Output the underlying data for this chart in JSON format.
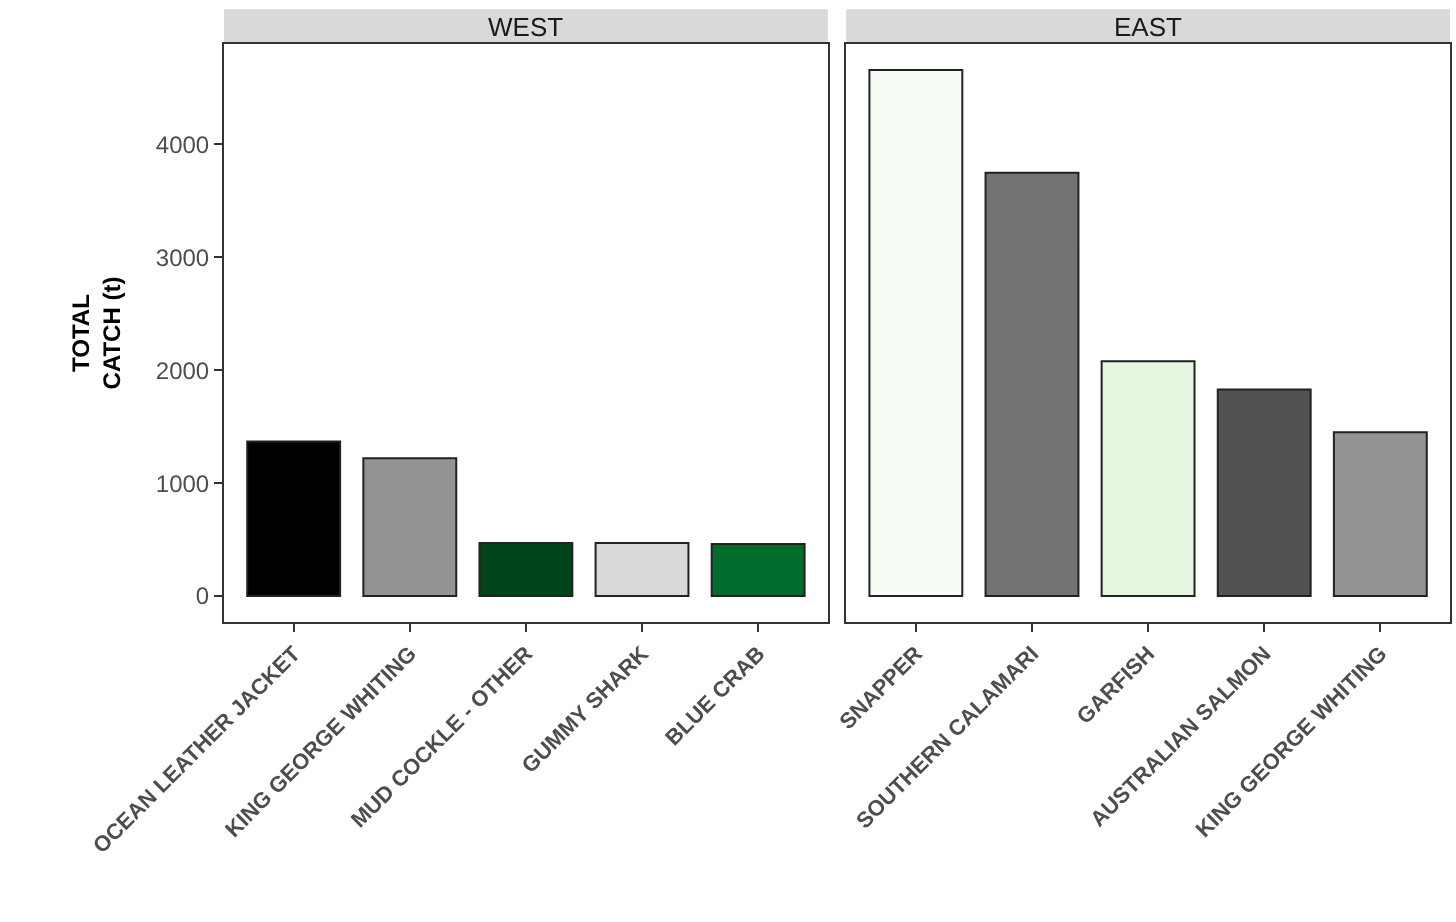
{
  "chart_data": [
    {
      "type": "bar",
      "title": "WEST",
      "ylabel": "TOTAL\nCATCH (t)",
      "categories": [
        "OCEAN LEATHER JACKET",
        "KING GEORGE WHITING",
        "MUD COCKLE - OTHER",
        "GUMMY SHARK",
        "BLUE CRAB"
      ],
      "values": [
        1370,
        1220,
        470,
        470,
        460
      ],
      "colors": [
        "#000000",
        "#939393",
        "#00441b",
        "#d9d9d9",
        "#006d2c"
      ],
      "ylim": [
        -230,
        4890
      ],
      "yticks": [
        0,
        1000,
        2000,
        3000,
        4000
      ]
    },
    {
      "type": "bar",
      "title": "EAST",
      "categories": [
        "SNAPPER",
        "SOUTHERN CALAMARI",
        "GARFISH",
        "AUSTRALIAN SALMON",
        "KING GEORGE WHITING"
      ],
      "values": [
        4660,
        3750,
        2080,
        1830,
        1450
      ],
      "colors": [
        "#f7fcf5",
        "#737373",
        "#e5f5e0",
        "#525252",
        "#939393"
      ],
      "ylim": [
        -230,
        4890
      ],
      "yticks": [
        0,
        1000,
        2000,
        3000,
        4000
      ],
      "tick_labels": "x"
    }
  ]
}
